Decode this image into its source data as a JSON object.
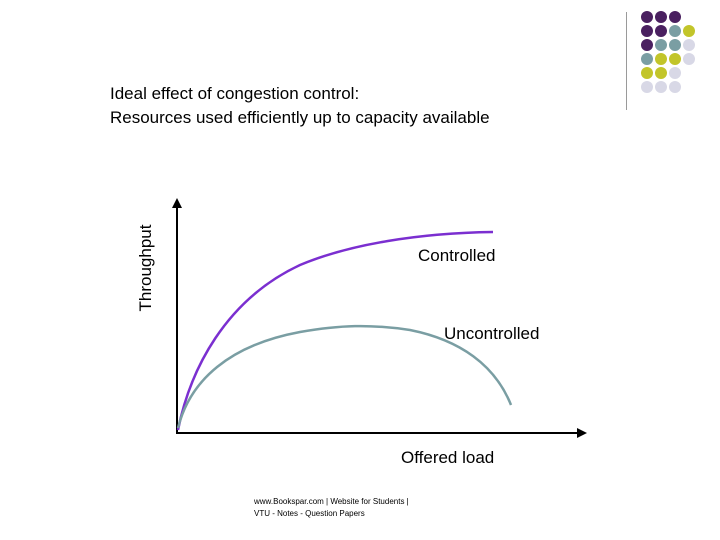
{
  "title": {
    "line1": "Ideal effect of congestion control:",
    "line2": "Resources used efficiently up to capacity available"
  },
  "axes": {
    "x_label": "Offered load",
    "y_label": "Throughput"
  },
  "curves": {
    "controlled": {
      "label": "Controlled",
      "color": "#7b2fd0"
    },
    "uncontrolled": {
      "label": "Uncontrolled",
      "color": "#7a9ea3"
    }
  },
  "footer": {
    "line1": "www.Bookspar.com | Website for Students |",
    "line2": "VTU - Notes - Question Papers"
  },
  "decor": {
    "dot_colors": [
      "#4a2060",
      "#7a9ea3",
      "#c2c52a",
      "#d8d8e6"
    ]
  }
}
